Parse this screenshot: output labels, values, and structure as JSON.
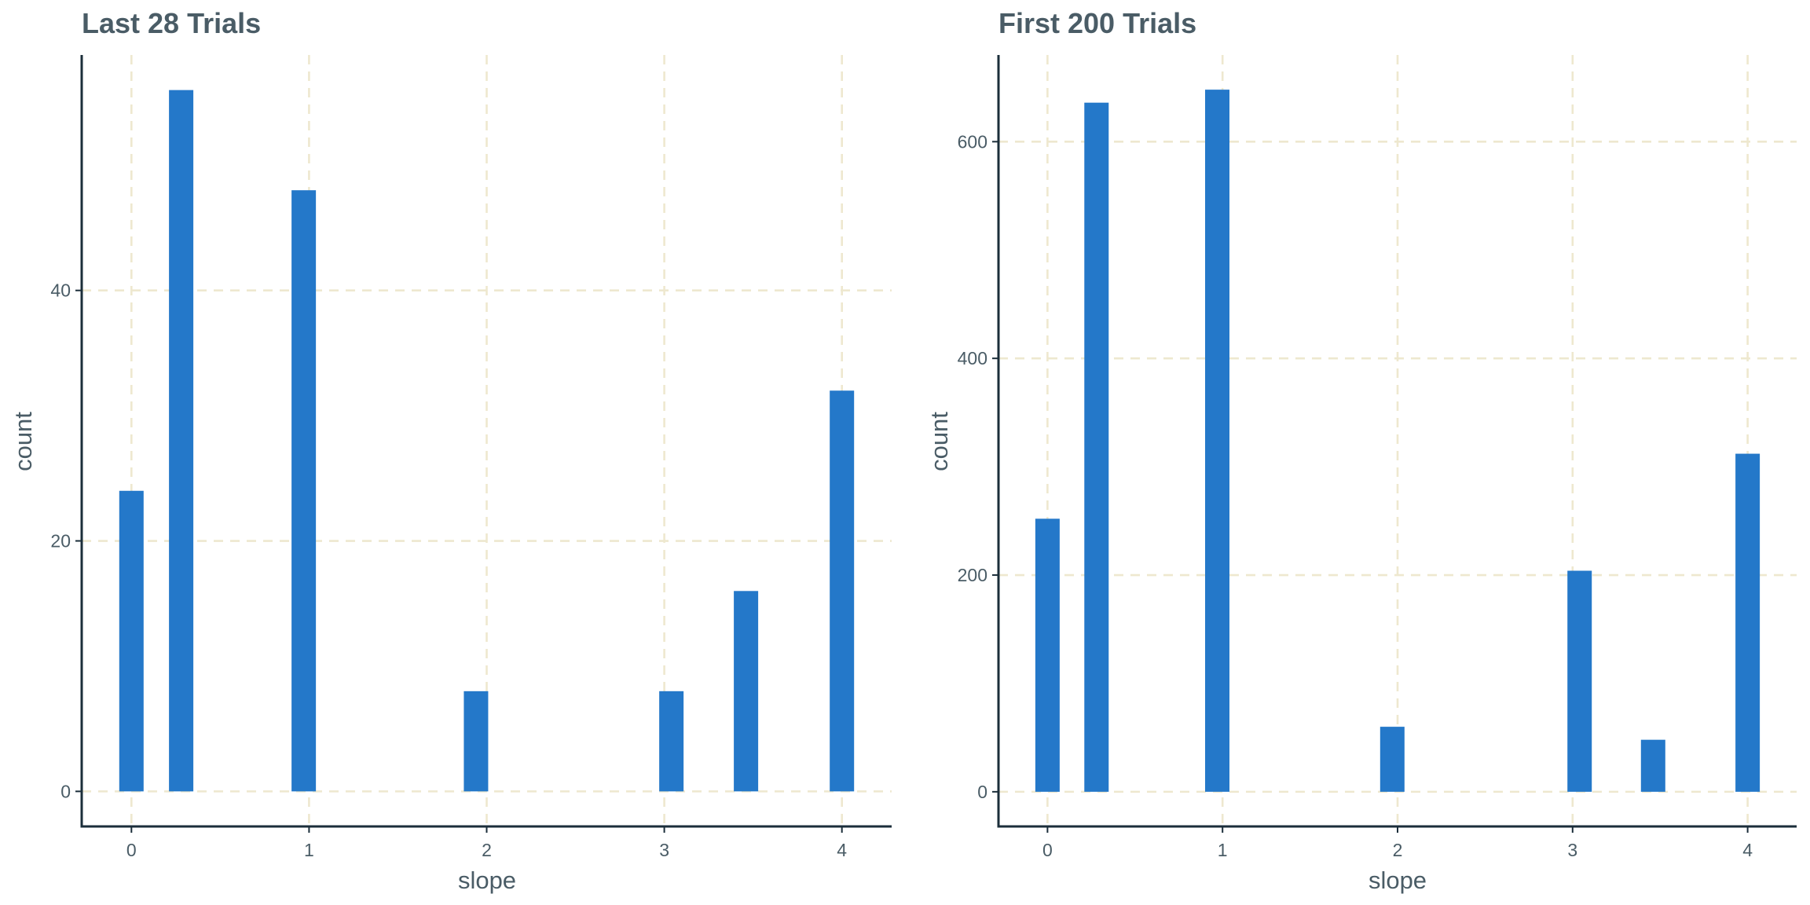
{
  "colors": {
    "bar": "#2478c9",
    "grid": "#eee8cf",
    "axis": "#1b2e3a",
    "text": "#4a5c66"
  },
  "chart_data": [
    {
      "type": "bar",
      "title": "Last 28 Trials",
      "xlabel": "slope",
      "ylabel": "count",
      "x_ticks": [
        "0",
        "1",
        "2",
        "3",
        "4"
      ],
      "y_ticks": [
        "0",
        "20",
        "40"
      ],
      "xlim": [
        -0.28,
        4.28
      ],
      "ylim": [
        -2.8,
        58.8
      ],
      "grid": true,
      "x": [
        0,
        0.28,
        0.97,
        1.94,
        3.04,
        3.46,
        4.0
      ],
      "values": [
        24,
        56,
        48,
        8,
        8,
        16,
        32
      ]
    },
    {
      "type": "bar",
      "title": "First 200 Trials",
      "xlabel": "slope",
      "ylabel": "count",
      "x_ticks": [
        "0",
        "1",
        "2",
        "3",
        "4"
      ],
      "y_ticks": [
        "0",
        "200",
        "400",
        "600"
      ],
      "xlim": [
        -0.28,
        4.28
      ],
      "ylim": [
        -32,
        680
      ],
      "grid": true,
      "x": [
        0,
        0.28,
        0.97,
        1.97,
        3.04,
        3.46,
        4.0
      ],
      "values": [
        252,
        636,
        648,
        60,
        204,
        48,
        312
      ]
    }
  ]
}
